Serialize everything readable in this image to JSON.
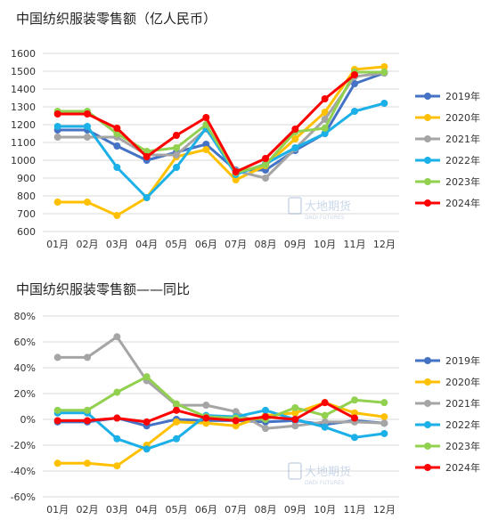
{
  "watermark": {
    "name": "大地期货",
    "sub": "DADI FUTURES"
  },
  "chart_data": [
    {
      "type": "line",
      "title": "中国纺织服装零售额（亿人民币）",
      "categories": [
        "01月",
        "02月",
        "03月",
        "04月",
        "05月",
        "06月",
        "07月",
        "08月",
        "09月",
        "10月",
        "11月",
        "12月"
      ],
      "ylim": [
        600,
        1600
      ],
      "yticks": [
        600,
        700,
        800,
        900,
        1000,
        1100,
        1200,
        1300,
        1400,
        1500,
        1600
      ],
      "ytick_labels": [
        "600",
        "700",
        "800",
        "900",
        "1000",
        "1100",
        "1200",
        "1300",
        "1400",
        "1500",
        "1600"
      ],
      "grid": true,
      "legend": "right",
      "series": [
        {
          "name": "2019年",
          "color": "#4472C4",
          "values": [
            1170,
            1170,
            1080,
            1000,
            1045,
            1090,
            945,
            945,
            1055,
            1150,
            1430,
            1490
          ]
        },
        {
          "name": "2020年",
          "color": "#FFC000",
          "values": [
            765,
            765,
            690,
            790,
            1020,
            1060,
            890,
            970,
            1120,
            1270,
            1510,
            1525
          ]
        },
        {
          "name": "2021年",
          "color": "#A5A5A5",
          "values": [
            1130,
            1130,
            1130,
            1030,
            1030,
            1175,
            940,
            900,
            1065,
            1230,
            1470,
            1490
          ]
        },
        {
          "name": "2022年",
          "color": "#1CB0E8",
          "values": [
            1190,
            1190,
            960,
            790,
            960,
            1180,
            920,
            980,
            1070,
            1150,
            1275,
            1320
          ]
        },
        {
          "name": "2023年",
          "color": "#92D050",
          "values": [
            1275,
            1275,
            1150,
            1050,
            1070,
            1200,
            930,
            975,
            1160,
            1180,
            1495,
            1495
          ]
        },
        {
          "name": "2024年",
          "color": "#FF0000",
          "values": [
            1260,
            1260,
            1180,
            1020,
            1140,
            1240,
            935,
            1010,
            1175,
            1345,
            1480,
            null
          ]
        }
      ]
    },
    {
      "type": "line",
      "title": "中国纺织服装零售额——同比",
      "categories": [
        "01月",
        "02月",
        "03月",
        "04月",
        "05月",
        "06月",
        "07月",
        "08月",
        "09月",
        "10月",
        "11月",
        "12月"
      ],
      "ylim": [
        -60,
        80
      ],
      "yticks": [
        -60,
        -40,
        -20,
        0,
        20,
        40,
        60,
        80
      ],
      "ytick_labels": [
        "-60%",
        "-40%",
        "-20%",
        "0%",
        "20%",
        "40%",
        "60%",
        "80%"
      ],
      "grid": true,
      "legend": "right",
      "series": [
        {
          "name": "2019年",
          "color": "#4472C4",
          "values": [
            -2,
            -2,
            1,
            -5,
            0,
            -1,
            -1,
            -2,
            -1,
            -4,
            -1,
            -3
          ]
        },
        {
          "name": "2020年",
          "color": "#FFC000",
          "values": [
            -34,
            -34,
            -36,
            -20,
            -2,
            -3,
            -5,
            3,
            5,
            13,
            5,
            2
          ]
        },
        {
          "name": "2021年",
          "color": "#A5A5A5",
          "values": [
            48,
            48,
            64,
            30,
            11,
            11,
            6,
            -7,
            -5,
            -2,
            -2,
            -3
          ]
        },
        {
          "name": "2022年",
          "color": "#1CB0E8",
          "values": [
            5,
            5,
            -15,
            -23,
            -15,
            3,
            2,
            7,
            0,
            -6,
            -14,
            -11
          ]
        },
        {
          "name": "2023年",
          "color": "#92D050",
          "values": [
            7,
            7,
            21,
            33,
            12,
            2,
            1,
            0,
            9,
            3,
            15,
            13
          ]
        },
        {
          "name": "2024年",
          "color": "#FF0000",
          "values": [
            -1,
            -1,
            1,
            -2,
            7,
            1,
            -1,
            2,
            0,
            13,
            1,
            null
          ]
        }
      ]
    }
  ]
}
